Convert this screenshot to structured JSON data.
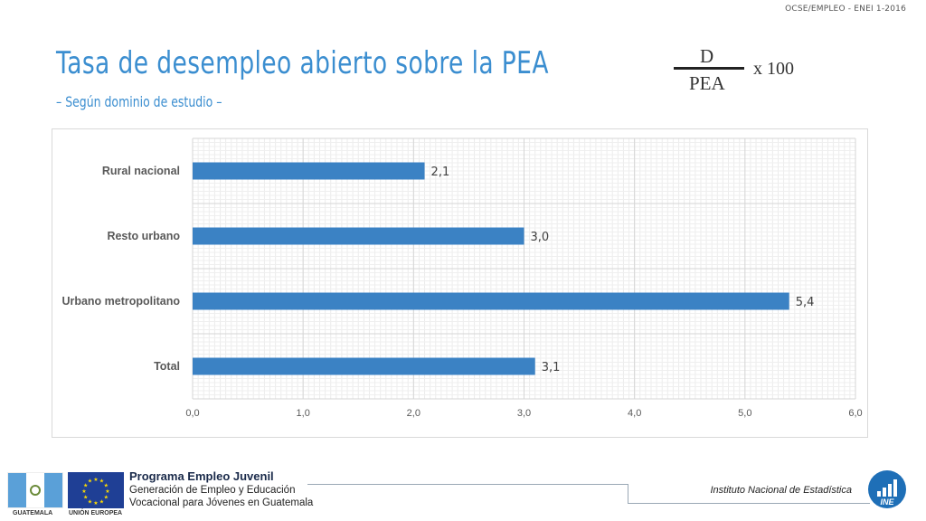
{
  "header": {
    "tag": "OCSE/EMPLEO - ENEI 1-2016"
  },
  "title": "Tasa de desempleo abierto sobre la PEA",
  "subtitle": "– Según dominio de estudio –",
  "formula": {
    "numerator": "D",
    "denominator": "PEA",
    "multiplier": "x 100"
  },
  "chart_data": {
    "type": "bar",
    "orientation": "horizontal",
    "categories": [
      "Rural nacional",
      "Resto urbano",
      "Urbano metropolitano",
      "Total"
    ],
    "values": [
      2.1,
      3.0,
      5.4,
      3.1
    ],
    "data_labels": [
      "2,1",
      "3,0",
      "5,4",
      "3,1"
    ],
    "xlim": [
      0,
      6
    ],
    "x_ticks": [
      "0,0",
      "1,0",
      "2,0",
      "3,0",
      "4,0",
      "5,0",
      "6,0"
    ],
    "grid": true,
    "bar_color": "#3b82c4"
  },
  "footer": {
    "gt_caption": "GUATEMALA",
    "eu_caption": "UNIÓN EUROPEA",
    "program_title": "Programa Empleo Juvenil",
    "program_line1": "Generación de Empleo y Educación",
    "program_line2": "Vocacional para Jóvenes en Guatemala",
    "institute": "Instituto Nacional de Estadística",
    "ine_label": "INE"
  },
  "colors": {
    "accent": "#3b8ed0",
    "bar": "#3b82c4",
    "eu_blue": "#1f3f95",
    "ine_blue": "#1e6fb7"
  }
}
